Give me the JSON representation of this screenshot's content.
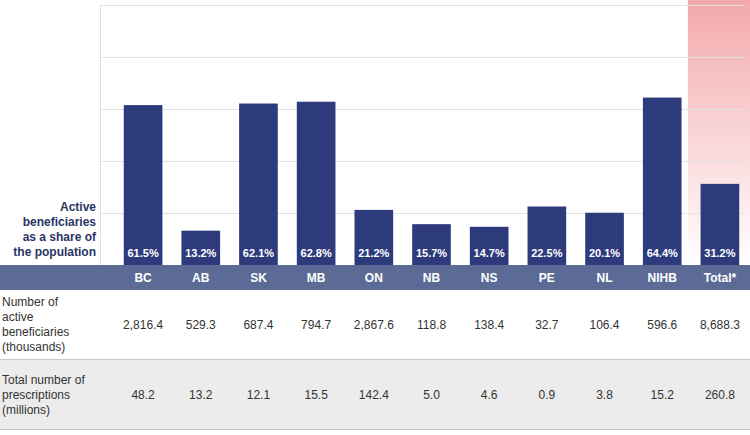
{
  "chart_data": {
    "type": "bar",
    "categories": [
      "BC",
      "AB",
      "SK",
      "MB",
      "ON",
      "NB",
      "NS",
      "PE",
      "NL",
      "NIHB",
      "Total*"
    ],
    "values": [
      61.5,
      13.2,
      62.1,
      62.8,
      21.2,
      15.7,
      14.7,
      22.5,
      20.1,
      64.4,
      31.2
    ],
    "value_labels": [
      "61.5%",
      "13.2%",
      "62.1%",
      "62.8%",
      "21.2%",
      "15.7%",
      "14.7%",
      "22.5%",
      "20.1%",
      "64.4%",
      "31.2%"
    ],
    "data_labels": true,
    "color": "#2d3b7c",
    "ylim": [
      0,
      100
    ],
    "yticks": [
      0,
      20,
      40,
      60,
      80,
      100
    ],
    "grid": true,
    "tick_labels": false,
    "ylabel": "Active beneficiaries as a share of the population"
  },
  "table": {
    "rows": [
      {
        "label": "Number of active beneficiaries (thousands)",
        "values": [
          "2,816.4",
          "529.3",
          "687.4",
          "794.7",
          "2,867.6",
          "118.8",
          "138.4",
          "32.7",
          "106.4",
          "596.6",
          "8,688.3"
        ]
      },
      {
        "label": "Total number of prescriptions (millions)",
        "values": [
          "48.2",
          "13.2",
          "12.1",
          "15.5",
          "142.4",
          "5.0",
          "4.6",
          "0.9",
          "3.8",
          "15.2",
          "260.8"
        ]
      }
    ]
  }
}
